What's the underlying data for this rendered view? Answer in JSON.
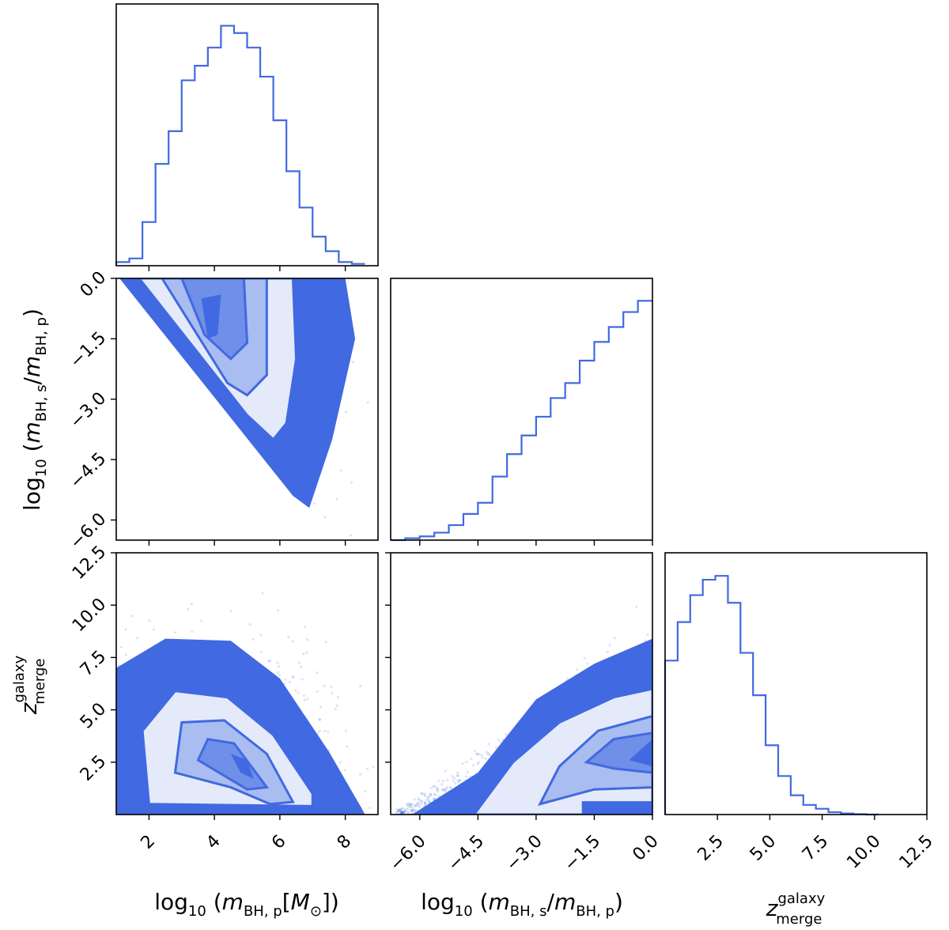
{
  "colors": {
    "main": "#4169e1",
    "fill_light": "#e4eaf9",
    "fill_mid": "#a9bdf0",
    "fill_dark": "#6f8fe8"
  },
  "labels": {
    "x_mass": {
      "prefix": "log",
      "sub10": "10",
      "open": " (",
      "m": "m",
      "sub": "BH, p",
      "bracket": "[",
      "M": "M",
      "Msub": "⊙",
      "close": "])"
    },
    "x_ratio": {
      "prefix": "log",
      "sub10": "10",
      "open": " (",
      "m": "m",
      "sub": "BH, s",
      "slash": "/",
      "m2": "m",
      "sub2": "BH, p",
      "close": ")"
    },
    "z_merge": {
      "z": "z",
      "sup": "galaxy",
      "sub": "merge"
    }
  },
  "chart_data": [
    {
      "type": "histogram",
      "panel": "top-left",
      "variable": "log10(m_BH,p [M_sun])",
      "xlim": [
        1,
        9
      ],
      "bin_edges": [
        1.0,
        1.4,
        1.8,
        2.2,
        2.6,
        3.0,
        3.4,
        3.8,
        4.2,
        4.6,
        5.0,
        5.4,
        5.8,
        6.2,
        6.6,
        7.0,
        7.4,
        7.8,
        8.2,
        8.6
      ],
      "counts": [
        1,
        2,
        12,
        28,
        37,
        51,
        55,
        60,
        66,
        64,
        60,
        52,
        40,
        26,
        16,
        8,
        4,
        1,
        0.5
      ],
      "ymax": 72,
      "xticks": [
        "2",
        "4",
        "6",
        "8"
      ]
    },
    {
      "type": "histogram",
      "panel": "middle-center",
      "variable": "log10(m_BH,s/m_BH,p)",
      "xlim": [
        -6.75,
        0
      ],
      "bin_edges": [
        -6.75,
        -6.375,
        -6.0,
        -5.625,
        -5.25,
        -4.875,
        -4.5,
        -4.125,
        -3.75,
        -3.375,
        -3.0,
        -2.625,
        -2.25,
        -1.875,
        -1.5,
        -1.125,
        -0.75,
        -0.375,
        0.0
      ],
      "counts": [
        0,
        0.5,
        1,
        2,
        4,
        7,
        10,
        17,
        23,
        28,
        33,
        38,
        42,
        48,
        53,
        57,
        61,
        64
      ],
      "ymax": 70,
      "xticks": [
        "-6.0",
        "-4.5",
        "-3.0",
        "-1.5",
        "0.0"
      ]
    },
    {
      "type": "histogram",
      "panel": "bottom-right",
      "variable": "z_merge^galaxy",
      "xlim": [
        0,
        12.5
      ],
      "bin_edges": [
        0.0,
        0.6,
        1.2,
        1.8,
        2.4,
        3.0,
        3.6,
        4.2,
        4.8,
        5.4,
        6.0,
        6.6,
        7.2,
        7.8,
        8.4,
        9.0,
        9.6,
        10.2
      ],
      "counts": [
        40,
        50,
        57,
        61,
        62,
        55,
        42,
        31,
        18,
        10,
        5,
        2.5,
        1.5,
        0.6,
        0.3,
        0.1,
        0
      ],
      "ymax": 68,
      "xticks": [
        "2.5",
        "5.0",
        "7.5",
        "10.0",
        "12.5"
      ]
    },
    {
      "type": "density-2d",
      "panel": "middle-left",
      "x_variable": "log10(m_BH,p [M_sun])",
      "y_variable": "log10(m_BH,s/m_BH,p)",
      "xlim": [
        1,
        9
      ],
      "ylim": [
        -6.5,
        0
      ],
      "yticks": [
        "0.0",
        "-1.5",
        "-3.0",
        "-4.5",
        "-6.0"
      ],
      "note": "Scatter cloud bounded by lower diagonal edge; density peak near (3.8, -1)"
    },
    {
      "type": "density-2d",
      "panel": "bottom-left",
      "x_variable": "log10(m_BH,p [M_sun])",
      "y_variable": "z_merge^galaxy",
      "xlim": [
        1,
        9
      ],
      "ylim": [
        0,
        12.5
      ],
      "xticks": [
        "2",
        "4",
        "6",
        "8"
      ],
      "yticks": [
        "2.5",
        "5.0",
        "7.5",
        "10.0",
        "12.5"
      ],
      "note": "Density peak near (4.8, 2.5)"
    },
    {
      "type": "density-2d",
      "panel": "bottom-center",
      "x_variable": "log10(m_BH,s/m_BH,p)",
      "y_variable": "z_merge^galaxy",
      "xlim": [
        -6.75,
        0
      ],
      "ylim": [
        0,
        12.5
      ],
      "xticks": [
        "-6.0",
        "-4.5",
        "-3.0",
        "-1.5",
        "0.0"
      ],
      "note": "Density peak near (0, 3)"
    }
  ]
}
